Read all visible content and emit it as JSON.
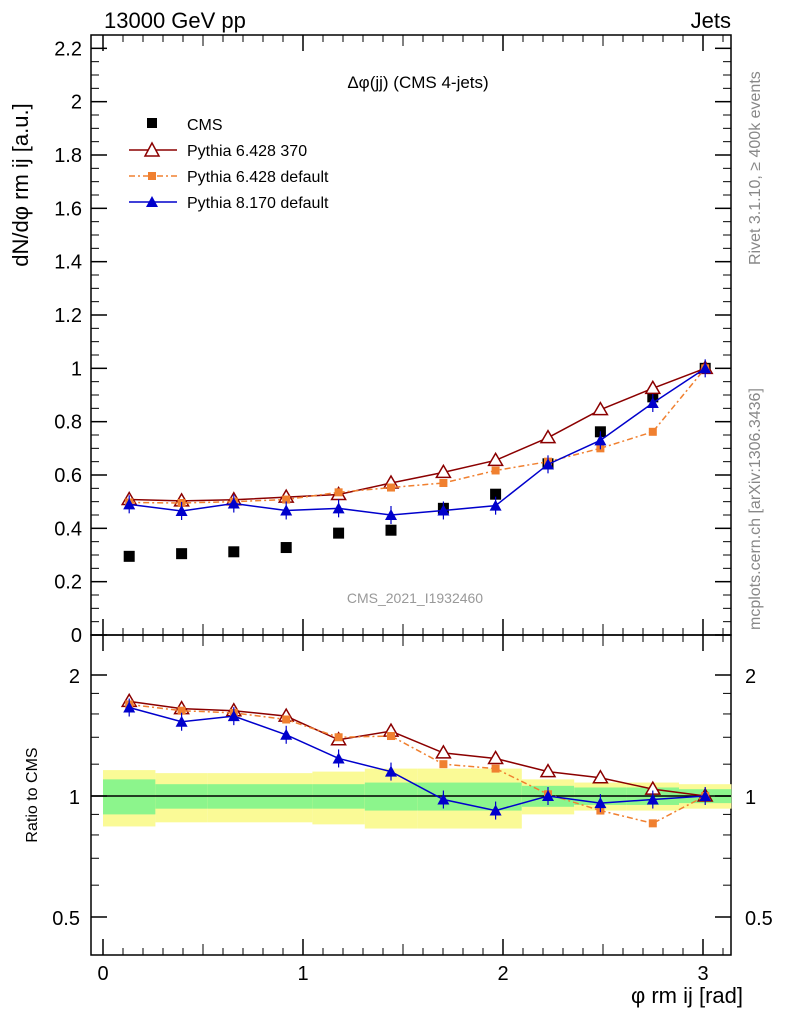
{
  "header": {
    "left": "13000 GeV pp",
    "right": "Jets"
  },
  "side_labels": {
    "rivet": "Rivet 3.1.10, ≥ 400k events",
    "mcplots": "mcplots.cern.ch [arXiv:1306.3436]"
  },
  "watermark": "CMS_2021_I1932460",
  "colors": {
    "cms": "#000000",
    "pythia6_370": "#8b0000",
    "pythia6_default": "#f08030",
    "pythia8_default": "#0000cc",
    "band_inner": "#8cf58c",
    "band_outer": "#fafa96"
  },
  "chart_data": [
    {
      "type": "scatter",
      "panel": "main",
      "title": "Δφ(jj) (CMS 4-jets)",
      "ylabel": "dN/dφ rm ij [a.u.]",
      "ylim": [
        0,
        2.25
      ],
      "yticks": [
        "0",
        "0.2",
        "0.4",
        "0.6",
        "0.8",
        "1",
        "1.2",
        "1.4",
        "1.6",
        "1.8",
        "2",
        "2.2"
      ],
      "legend_position": "top-left",
      "x": [
        0.131,
        0.393,
        0.654,
        0.916,
        1.178,
        1.44,
        1.702,
        1.963,
        2.225,
        2.487,
        2.749,
        3.011
      ],
      "series": [
        {
          "name": "CMS",
          "marker": "square",
          "values": [
            0.295,
            0.305,
            0.312,
            0.328,
            0.382,
            0.393,
            0.475,
            0.528,
            0.642,
            0.762,
            0.893,
            1.0
          ]
        },
        {
          "name": "Pythia 6.428 370",
          "marker": "open-triangle",
          "values": [
            0.508,
            0.503,
            0.507,
            0.517,
            0.527,
            0.57,
            0.61,
            0.655,
            0.74,
            0.845,
            0.925,
            1.0
          ]
        },
        {
          "name": "Pythia 6.428 default",
          "marker": "small-square",
          "values": [
            0.497,
            0.495,
            0.5,
            0.508,
            0.535,
            0.553,
            0.57,
            0.617,
            0.65,
            0.7,
            0.762,
            1.0
          ]
        },
        {
          "name": "Pythia 8.170 default",
          "marker": "triangle",
          "values": [
            0.49,
            0.465,
            0.493,
            0.467,
            0.475,
            0.45,
            0.467,
            0.485,
            0.64,
            0.73,
            0.87,
            1.0
          ]
        }
      ]
    },
    {
      "type": "scatter",
      "panel": "ratio",
      "ylabel": "Ratio to CMS",
      "xlabel": "φ rm ij [rad]",
      "ylim": [
        0.4,
        2.3
      ],
      "yticks": [
        "0.5",
        "1",
        "2"
      ],
      "xlim": [
        -0.05,
        3.2
      ],
      "xticks": [
        "0",
        "1",
        "2",
        "3"
      ],
      "x": [
        0.131,
        0.393,
        0.654,
        0.916,
        1.178,
        1.44,
        1.702,
        1.963,
        2.225,
        2.487,
        2.749,
        3.011
      ],
      "series": [
        {
          "name": "Pythia 6.428 370",
          "values": [
            1.72,
            1.65,
            1.63,
            1.58,
            1.38,
            1.45,
            1.28,
            1.24,
            1.15,
            1.11,
            1.04,
            1.0
          ]
        },
        {
          "name": "Pythia 6.428 default",
          "values": [
            1.69,
            1.63,
            1.61,
            1.55,
            1.4,
            1.41,
            1.2,
            1.17,
            1.01,
            0.92,
            0.855,
            1.0
          ]
        },
        {
          "name": "Pythia 8.170 default",
          "values": [
            1.66,
            1.53,
            1.58,
            1.42,
            1.24,
            1.15,
            0.98,
            0.92,
            1.0,
            0.96,
            0.98,
            1.0
          ]
        }
      ],
      "band_inner": [
        0.1,
        0.07,
        0.07,
        0.07,
        0.07,
        0.08,
        0.08,
        0.08,
        0.06,
        0.05,
        0.05,
        0.04
      ],
      "band_outer": [
        0.16,
        0.14,
        0.14,
        0.14,
        0.15,
        0.17,
        0.17,
        0.17,
        0.1,
        0.08,
        0.08,
        0.07
      ]
    }
  ]
}
